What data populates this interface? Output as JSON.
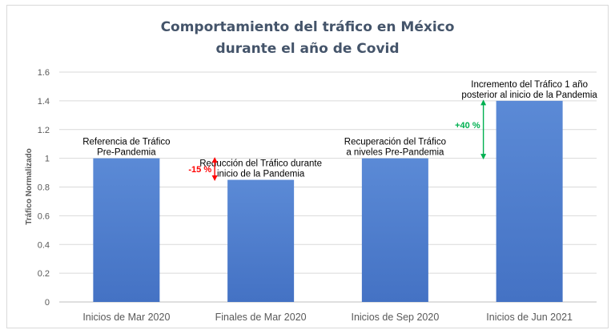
{
  "chart_data": {
    "type": "bar",
    "title_lines": [
      "Comportamiento del tráfico en México",
      "durante el año de Covid"
    ],
    "ylabel": "Tráfico Normalizado",
    "xlabel": "",
    "ylim": [
      0,
      1.6
    ],
    "yticks": [
      "0",
      "0.2",
      "0.4",
      "0.6",
      "0.8",
      "1",
      "1.2",
      "1.4",
      "1.6"
    ],
    "ytick_values": [
      0,
      0.2,
      0.4,
      0.6,
      0.8,
      1.0,
      1.2,
      1.4,
      1.6
    ],
    "categories": [
      "Inicios de Mar 2020",
      "Finales de Mar 2020",
      "Inicios de Sep 2020",
      "Inicios de Jun 2021"
    ],
    "values": [
      1.0,
      0.85,
      1.0,
      1.4
    ],
    "grid": true,
    "bar_color": "#4472c4",
    "bar_color_top": "#5b8ad6",
    "annotations": [
      {
        "lines": [
          "Referencia de Tráfico",
          "Pre-Pandemia"
        ]
      },
      {
        "lines": [
          "Reducción del Tráfico durante",
          "inicio de la Pandemia"
        ]
      },
      {
        "lines": [
          "Recuperación del Tráfico",
          "a niveles Pre-Pandemia"
        ]
      },
      {
        "lines": [
          "Incremento del Tráfico 1 año",
          "posterior al inicio de la Pandemia"
        ]
      }
    ],
    "change_markers": [
      {
        "label": "-15 %",
        "color": "#ff0000",
        "from": 1.0,
        "to": 0.85
      },
      {
        "label": "+40 %",
        "color": "#00b050",
        "from": 1.0,
        "to": 1.4
      }
    ]
  }
}
